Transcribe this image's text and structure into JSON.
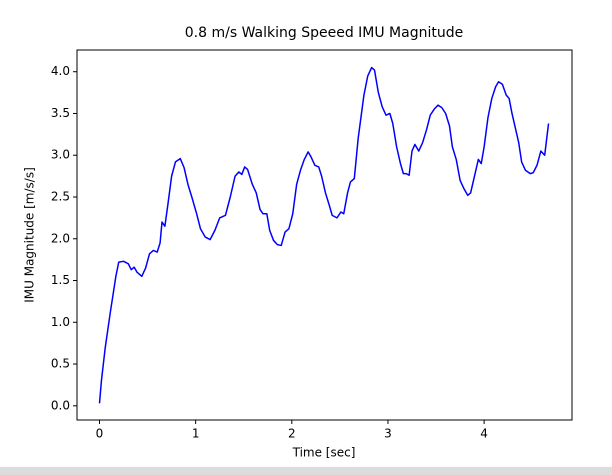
{
  "chart_data": {
    "type": "line",
    "title": "0.8 m/s Walking Speeed IMU Magnitude",
    "x_label": "Time [sec]",
    "y_label": "IMU Magnitude [m/s/s]",
    "x": [
      0,
      0.02,
      0.06,
      0.11,
      0.17,
      0.2,
      0.25,
      0.3,
      0.33,
      0.36,
      0.39,
      0.44,
      0.48,
      0.52,
      0.56,
      0.6,
      0.63,
      0.65,
      0.68,
      0.71,
      0.75,
      0.79,
      0.84,
      0.88,
      0.92,
      0.96,
      1.01,
      1.05,
      1.1,
      1.15,
      1.2,
      1.25,
      1.31,
      1.36,
      1.41,
      1.45,
      1.48,
      1.51,
      1.54,
      1.59,
      1.63,
      1.67,
      1.7,
      1.74,
      1.77,
      1.81,
      1.85,
      1.89,
      1.93,
      1.97,
      2.01,
      2.05,
      2.09,
      2.13,
      2.17,
      2.2,
      2.24,
      2.28,
      2.31,
      2.35,
      2.39,
      2.42,
      2.47,
      2.51,
      2.54,
      2.58,
      2.61,
      2.65,
      2.69,
      2.75,
      2.79,
      2.83,
      2.86,
      2.9,
      2.94,
      2.98,
      3.02,
      3.05,
      3.09,
      3.13,
      3.16,
      3.19,
      3.22,
      3.25,
      3.28,
      3.32,
      3.36,
      3.4,
      3.44,
      3.48,
      3.52,
      3.56,
      3.6,
      3.64,
      3.67,
      3.71,
      3.75,
      3.79,
      3.83,
      3.86,
      3.91,
      3.94,
      3.97,
      4.0,
      4.04,
      4.08,
      4.12,
      4.15,
      4.19,
      4.23,
      4.26,
      4.29,
      4.33,
      4.36,
      4.39,
      4.43,
      4.48,
      4.51,
      4.55,
      4.59,
      4.63,
      4.67
    ],
    "series": [
      {
        "name": "IMU Magnitude",
        "color": "#0000ff",
        "values": [
          0.03,
          0.3,
          0.7,
          1.1,
          1.55,
          1.72,
          1.73,
          1.7,
          1.63,
          1.66,
          1.6,
          1.55,
          1.65,
          1.82,
          1.86,
          1.84,
          1.95,
          2.2,
          2.15,
          2.4,
          2.75,
          2.92,
          2.96,
          2.85,
          2.65,
          2.5,
          2.3,
          2.12,
          2.02,
          1.99,
          2.1,
          2.25,
          2.28,
          2.5,
          2.75,
          2.8,
          2.77,
          2.86,
          2.83,
          2.65,
          2.55,
          2.35,
          2.3,
          2.3,
          2.1,
          1.98,
          1.93,
          1.92,
          2.08,
          2.12,
          2.3,
          2.65,
          2.82,
          2.95,
          3.04,
          2.98,
          2.88,
          2.86,
          2.75,
          2.55,
          2.4,
          2.28,
          2.25,
          2.32,
          2.3,
          2.55,
          2.68,
          2.72,
          3.2,
          3.72,
          3.95,
          4.05,
          4.02,
          3.75,
          3.58,
          3.48,
          3.5,
          3.38,
          3.1,
          2.9,
          2.78,
          2.78,
          2.76,
          3.05,
          3.13,
          3.05,
          3.15,
          3.3,
          3.48,
          3.55,
          3.6,
          3.57,
          3.5,
          3.35,
          3.1,
          2.95,
          2.7,
          2.6,
          2.52,
          2.55,
          2.8,
          2.95,
          2.9,
          3.1,
          3.45,
          3.68,
          3.82,
          3.88,
          3.85,
          3.72,
          3.68,
          3.5,
          3.3,
          3.15,
          2.92,
          2.82,
          2.78,
          2.79,
          2.88,
          3.05,
          3.0,
          3.38
        ]
      }
    ],
    "xlim": [
      -0.234,
      4.914
    ],
    "ylim": [
      -0.17,
      4.26
    ],
    "xticks": [
      0,
      1,
      2,
      3,
      4
    ],
    "yticks": [
      {
        "value": 0,
        "label": "0.0"
      },
      {
        "value": 0.5,
        "label": "0.5"
      },
      {
        "value": 1,
        "label": "1.0"
      },
      {
        "value": 1.5,
        "label": "1.5"
      },
      {
        "value": 2,
        "label": "2.0"
      },
      {
        "value": 2.5,
        "label": "2.5"
      },
      {
        "value": 3,
        "label": "3.0"
      },
      {
        "value": 3.5,
        "label": "3.5"
      },
      {
        "value": 4,
        "label": "4.0"
      }
    ],
    "grid": false
  }
}
